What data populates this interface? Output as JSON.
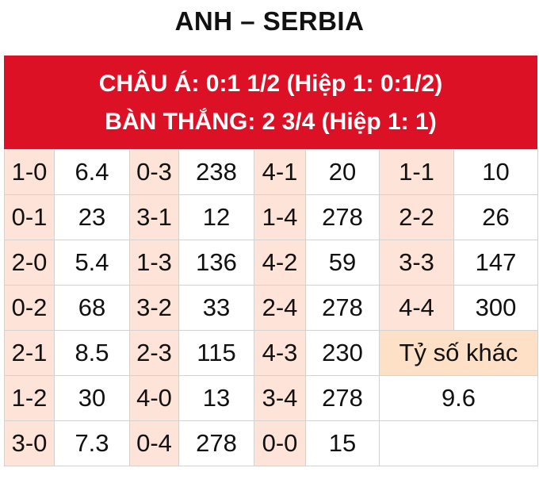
{
  "title": "ANH – SERBIA",
  "header": {
    "line1": "CHÂU Á: 0:1 1/2 (Hiệp 1: 0:1/2)",
    "line2": "BÀN THẮNG: 2 3/4 (Hiệp 1: 1)"
  },
  "colors": {
    "header_bg": "#dc1126",
    "score_bg": "#fde3d8",
    "other_bg": "#fde0c6"
  },
  "rows": [
    [
      {
        "s": "1-0",
        "o": "6.4"
      },
      {
        "s": "0-3",
        "o": "238"
      },
      {
        "s": "4-1",
        "o": "20"
      },
      {
        "s": "1-1",
        "o": "10"
      }
    ],
    [
      {
        "s": "0-1",
        "o": "23"
      },
      {
        "s": "3-1",
        "o": "12"
      },
      {
        "s": "1-4",
        "o": "278"
      },
      {
        "s": "2-2",
        "o": "26"
      }
    ],
    [
      {
        "s": "2-0",
        "o": "5.4"
      },
      {
        "s": "1-3",
        "o": "136"
      },
      {
        "s": "4-2",
        "o": "59"
      },
      {
        "s": "3-3",
        "o": "147"
      }
    ],
    [
      {
        "s": "0-2",
        "o": "68"
      },
      {
        "s": "3-2",
        "o": "33"
      },
      {
        "s": "2-4",
        "o": "278"
      },
      {
        "s": "4-4",
        "o": "300"
      }
    ],
    [
      {
        "s": "2-1",
        "o": "8.5"
      },
      {
        "s": "2-3",
        "o": "115"
      },
      {
        "s": "4-3",
        "o": "230"
      }
    ],
    [
      {
        "s": "1-2",
        "o": "30"
      },
      {
        "s": "4-0",
        "o": "13"
      },
      {
        "s": "3-4",
        "o": "278"
      }
    ],
    [
      {
        "s": "3-0",
        "o": "7.3"
      },
      {
        "s": "0-4",
        "o": "278"
      },
      {
        "s": "0-0",
        "o": "15"
      }
    ]
  ],
  "other": {
    "label": "Tỷ số khác",
    "value": "9.6"
  }
}
